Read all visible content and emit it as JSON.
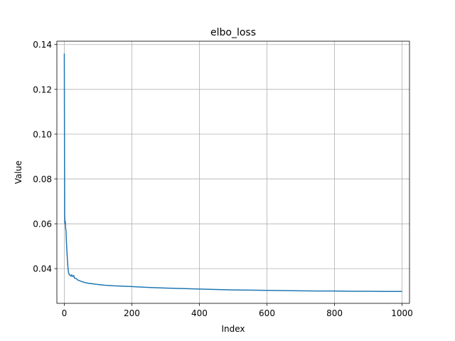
{
  "chart_data": {
    "type": "line",
    "title": "elbo_loss",
    "xlabel": "Index",
    "ylabel": "Value",
    "xlim": [
      -22,
      1022
    ],
    "ylim": [
      0.0245,
      0.1415
    ],
    "grid": true,
    "colors": {
      "line": "#1f77b4",
      "grid": "#b0b0b0",
      "frame": "#000000"
    },
    "xticks": [
      0,
      200,
      400,
      600,
      800,
      1000
    ],
    "xtick_labels": [
      "0",
      "200",
      "400",
      "600",
      "800",
      "1000"
    ],
    "yticks": [
      0.04,
      0.06,
      0.08,
      0.1,
      0.12,
      0.14
    ],
    "ytick_labels": [
      "0.04",
      "0.06",
      "0.08",
      "0.10",
      "0.12",
      "0.14"
    ],
    "series": [
      {
        "x": [
          0,
          1,
          2,
          3,
          4,
          5,
          6,
          8,
          10,
          12,
          15,
          18,
          20,
          22,
          25,
          28,
          30,
          35,
          40,
          50,
          60,
          70,
          80,
          100,
          120,
          150,
          200,
          250,
          300,
          350,
          400,
          450,
          500,
          550,
          600,
          650,
          700,
          750,
          800,
          850,
          900,
          950,
          1000
        ],
        "y": [
          0.136,
          0.064,
          0.06,
          0.061,
          0.058,
          0.057,
          0.053,
          0.047,
          0.042,
          0.0385,
          0.0372,
          0.037,
          0.0366,
          0.0372,
          0.0365,
          0.0369,
          0.0358,
          0.0356,
          0.0349,
          0.0343,
          0.0338,
          0.0335,
          0.0333,
          0.0329,
          0.0326,
          0.0323,
          0.032,
          0.0316,
          0.0313,
          0.0311,
          0.0309,
          0.0307,
          0.0305,
          0.0304,
          0.0303,
          0.0302,
          0.0301,
          0.03,
          0.03,
          0.0299,
          0.0299,
          0.0298,
          0.0298
        ]
      }
    ]
  }
}
